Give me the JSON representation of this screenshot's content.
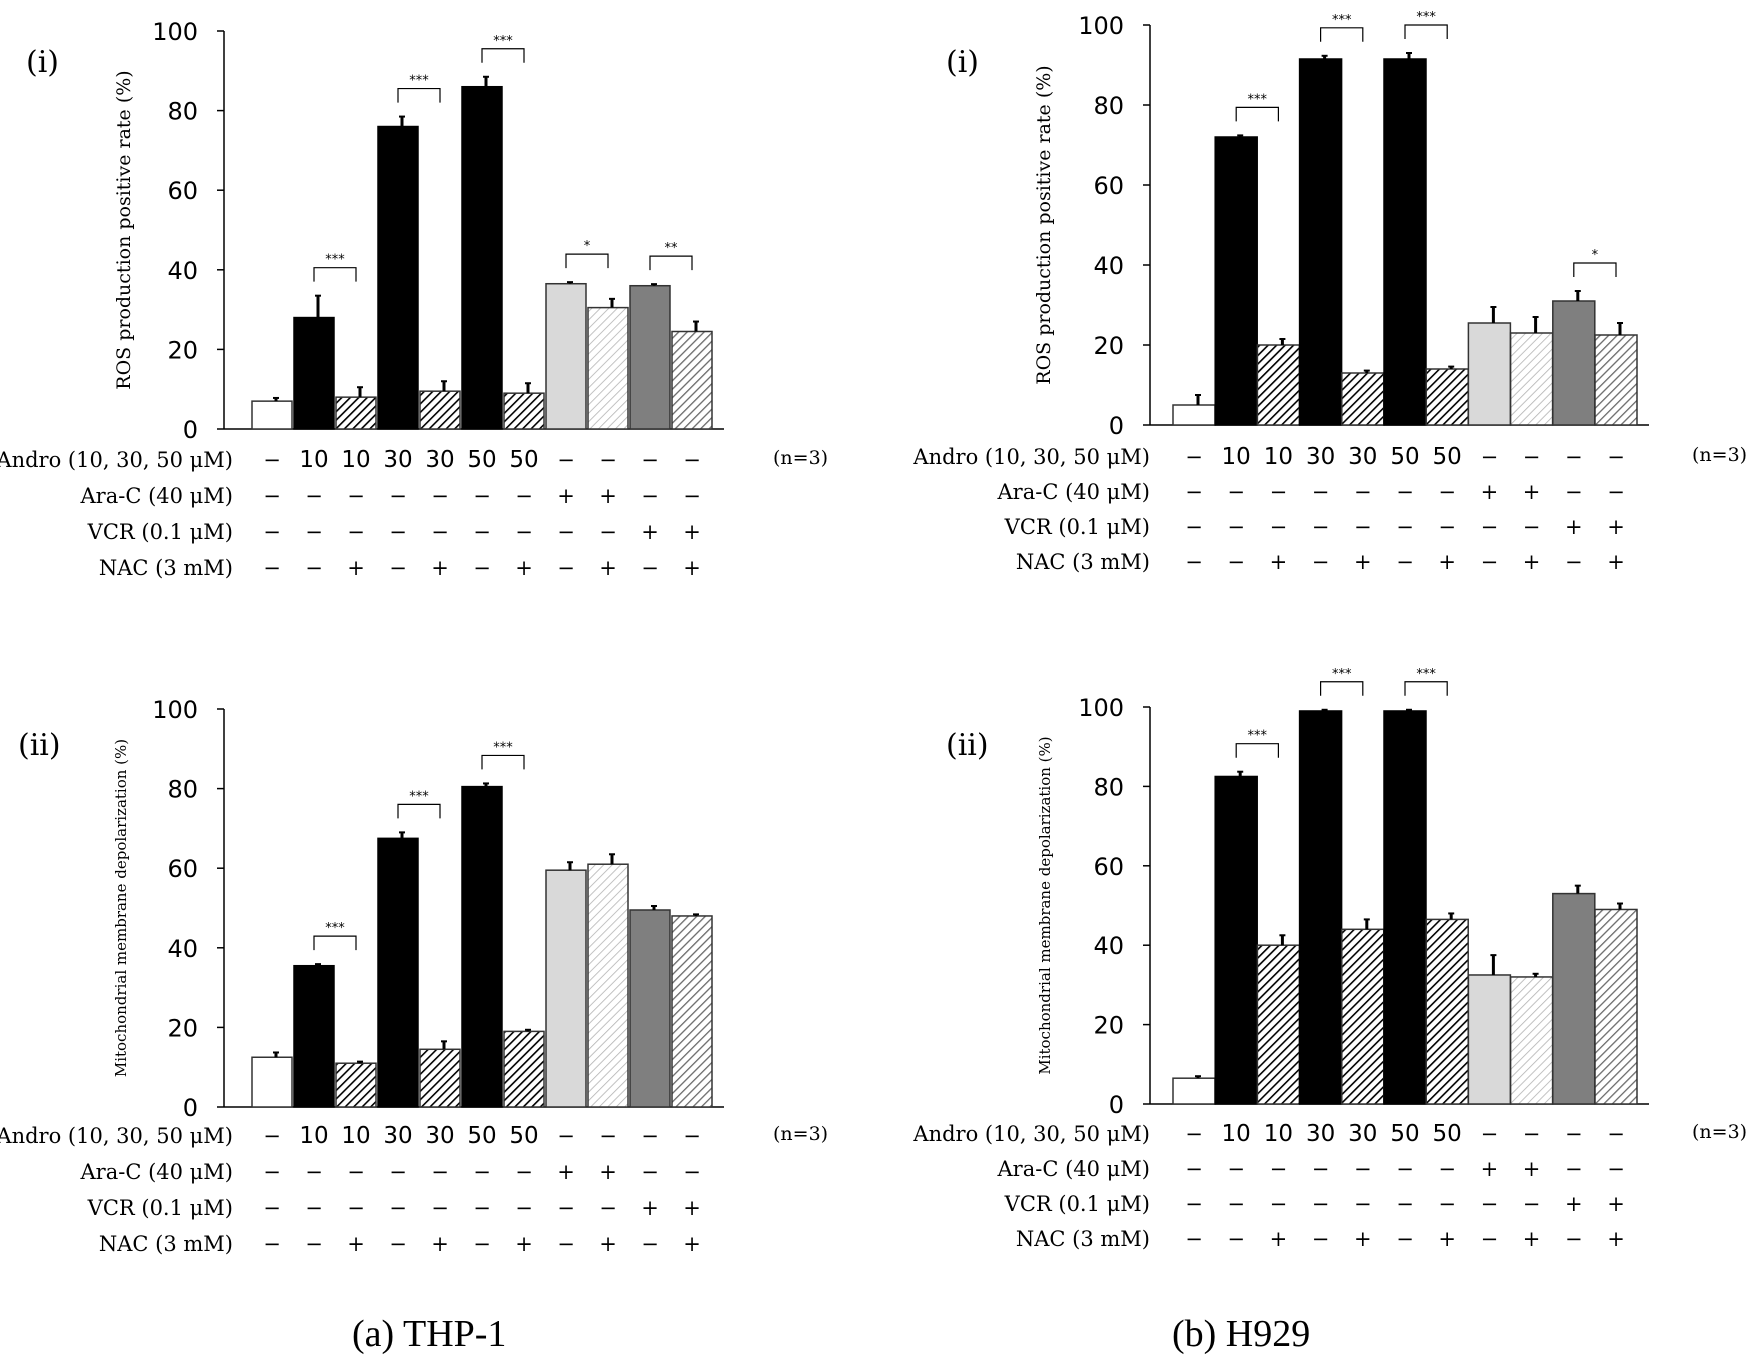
{
  "figure": {
    "captions": [
      "(a) THP-1",
      "(b) H929"
    ],
    "n_note": "(n=3)"
  },
  "conditions": {
    "rows": [
      {
        "label": "Andro (10, 30, 50 μM)",
        "values": [
          "−",
          "10",
          "10",
          "30",
          "30",
          "50",
          "50",
          "−",
          "−",
          "−",
          "−"
        ]
      },
      {
        "label": "Ara-C (40 μM)",
        "values": [
          "−",
          "−",
          "−",
          "−",
          "−",
          "−",
          "−",
          "+",
          "+",
          "−",
          "−"
        ]
      },
      {
        "label": "VCR (0.1 μM)",
        "values": [
          "−",
          "−",
          "−",
          "−",
          "−",
          "−",
          "−",
          "−",
          "−",
          "+",
          "+"
        ]
      },
      {
        "label": "NAC (3 mM)",
        "values": [
          "−",
          "−",
          "+",
          "−",
          "+",
          "−",
          "+",
          "−",
          "+",
          "−",
          "+"
        ]
      }
    ]
  },
  "styles": {
    "fills": [
      "white",
      "black",
      "hatch-dark",
      "black",
      "hatch-dark",
      "black",
      "hatch-dark",
      "lightgray",
      "hatch-light",
      "gray",
      "hatch-gray"
    ],
    "colors": {
      "black": "#000000",
      "lightgray": "#d9d9d9",
      "gray": "#7f7f7f",
      "white": "#ffffff"
    }
  },
  "chart_data": [
    {
      "id": "a-i",
      "type": "bar",
      "panel_label": "(i)",
      "ylabel": "ROS production positive rate (%)",
      "ylim": [
        0,
        100
      ],
      "yticks": [
        "0",
        "20",
        "40",
        "60",
        "80",
        "100"
      ],
      "values": [
        7,
        28,
        8,
        76,
        9.5,
        86,
        9,
        36.5,
        30.5,
        36,
        24.5
      ],
      "errors": [
        0.8,
        5.5,
        2.5,
        2.5,
        2.5,
        2.5,
        2.5,
        0.4,
        2.2,
        0.4,
        2.5
      ],
      "significance": [
        {
          "from": 1,
          "to": 2,
          "label": "***"
        },
        {
          "from": 3,
          "to": 4,
          "label": "***"
        },
        {
          "from": 5,
          "to": 6,
          "label": "***"
        },
        {
          "from": 7,
          "to": 8,
          "label": "*"
        },
        {
          "from": 9,
          "to": 10,
          "label": "**"
        }
      ]
    },
    {
      "id": "b-i",
      "type": "bar",
      "panel_label": "(i)",
      "ylabel": "ROS production positive rate (%)",
      "ylim": [
        0,
        100
      ],
      "yticks": [
        "0",
        "20",
        "40",
        "60",
        "80",
        "100"
      ],
      "values": [
        5,
        72,
        20,
        91.5,
        13,
        91.5,
        14,
        25.5,
        23,
        31,
        22.5
      ],
      "errors": [
        2.5,
        0.4,
        1.5,
        0.8,
        0.6,
        1.5,
        0.6,
        4,
        4,
        2.5,
        3
      ],
      "significance": [
        {
          "from": 1,
          "to": 2,
          "label": "***"
        },
        {
          "from": 3,
          "to": 4,
          "label": "***"
        },
        {
          "from": 5,
          "to": 6,
          "label": "***"
        },
        {
          "from": 9,
          "to": 10,
          "label": "*"
        }
      ]
    },
    {
      "id": "a-ii",
      "type": "bar",
      "panel_label": "(ii)",
      "ylabel": "Mitochondrial membrane depolarization (%)",
      "ylim": [
        0,
        100
      ],
      "yticks": [
        "0",
        "20",
        "40",
        "60",
        "80",
        "100"
      ],
      "values": [
        12.5,
        35.5,
        11,
        67.5,
        14.5,
        80.5,
        19,
        59.5,
        61,
        49.5,
        48
      ],
      "errors": [
        1.2,
        0.4,
        0.4,
        1.5,
        2,
        0.8,
        0.4,
        2,
        2.5,
        1,
        0.4
      ],
      "significance": [
        {
          "from": 1,
          "to": 2,
          "label": "***"
        },
        {
          "from": 3,
          "to": 4,
          "label": "***"
        },
        {
          "from": 5,
          "to": 6,
          "label": "***"
        }
      ]
    },
    {
      "id": "b-ii",
      "type": "bar",
      "panel_label": "(ii)",
      "ylabel": "Mitochondrial membrane depolarization (%)",
      "ylim": [
        0,
        100
      ],
      "yticks": [
        "0",
        "20",
        "40",
        "60",
        "80",
        "100"
      ],
      "values": [
        6.5,
        82.5,
        40,
        99,
        44,
        99,
        46.5,
        32.5,
        32,
        53,
        49
      ],
      "errors": [
        0.5,
        1.2,
        2.5,
        0.3,
        2.5,
        0.3,
        1.5,
        5,
        0.8,
        2,
        1.5
      ],
      "significance": [
        {
          "from": 1,
          "to": 2,
          "label": "***"
        },
        {
          "from": 3,
          "to": 4,
          "label": "***"
        },
        {
          "from": 5,
          "to": 6,
          "label": "***"
        }
      ]
    }
  ]
}
